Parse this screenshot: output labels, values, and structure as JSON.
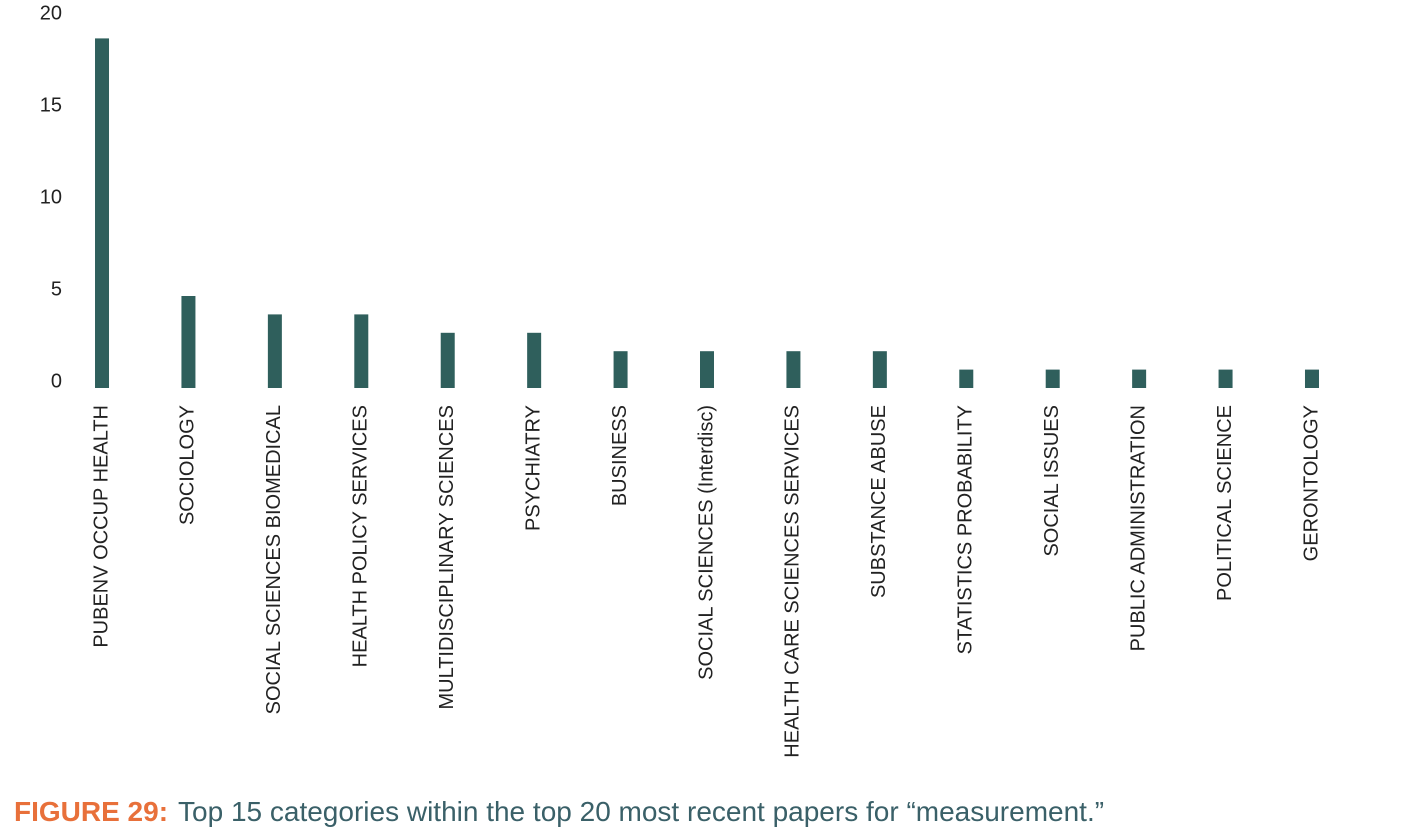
{
  "chart_data": {
    "type": "bar",
    "categories": [
      "PUBENV OCCUP HEALTH",
      "SOCIOLOGY",
      "SOCIAL SCIENCES BIOMEDICAL",
      "HEALTH POLICY SERVICES",
      "MULTIDISCIPLINARY SCIENCES",
      "PSYCHIATRY",
      "BUSINESS",
      "SOCIAL SCIENCES (Interdisc)",
      "HEALTH CARE SCIENCES SERVICES",
      "SUBSTANCE ABUSE",
      "STATISTICS PROBABILITY",
      "SOCIAL ISSUES",
      "PUBLIC ADMINISTRATION",
      "POLITICAL SCIENCE",
      "GERONTOLOGY"
    ],
    "values": [
      19,
      5,
      4,
      4,
      3,
      3,
      2,
      2,
      2,
      2,
      1,
      1,
      1,
      1,
      1
    ],
    "color": "#2f5f5c",
    "ylim": [
      0,
      20
    ],
    "yticks": [
      0,
      5,
      10,
      15,
      20
    ],
    "grid": false,
    "figure_label": "FIGURE 29:",
    "caption": "Top 15 categories within the top 20 most recent papers for “measurement.”"
  }
}
